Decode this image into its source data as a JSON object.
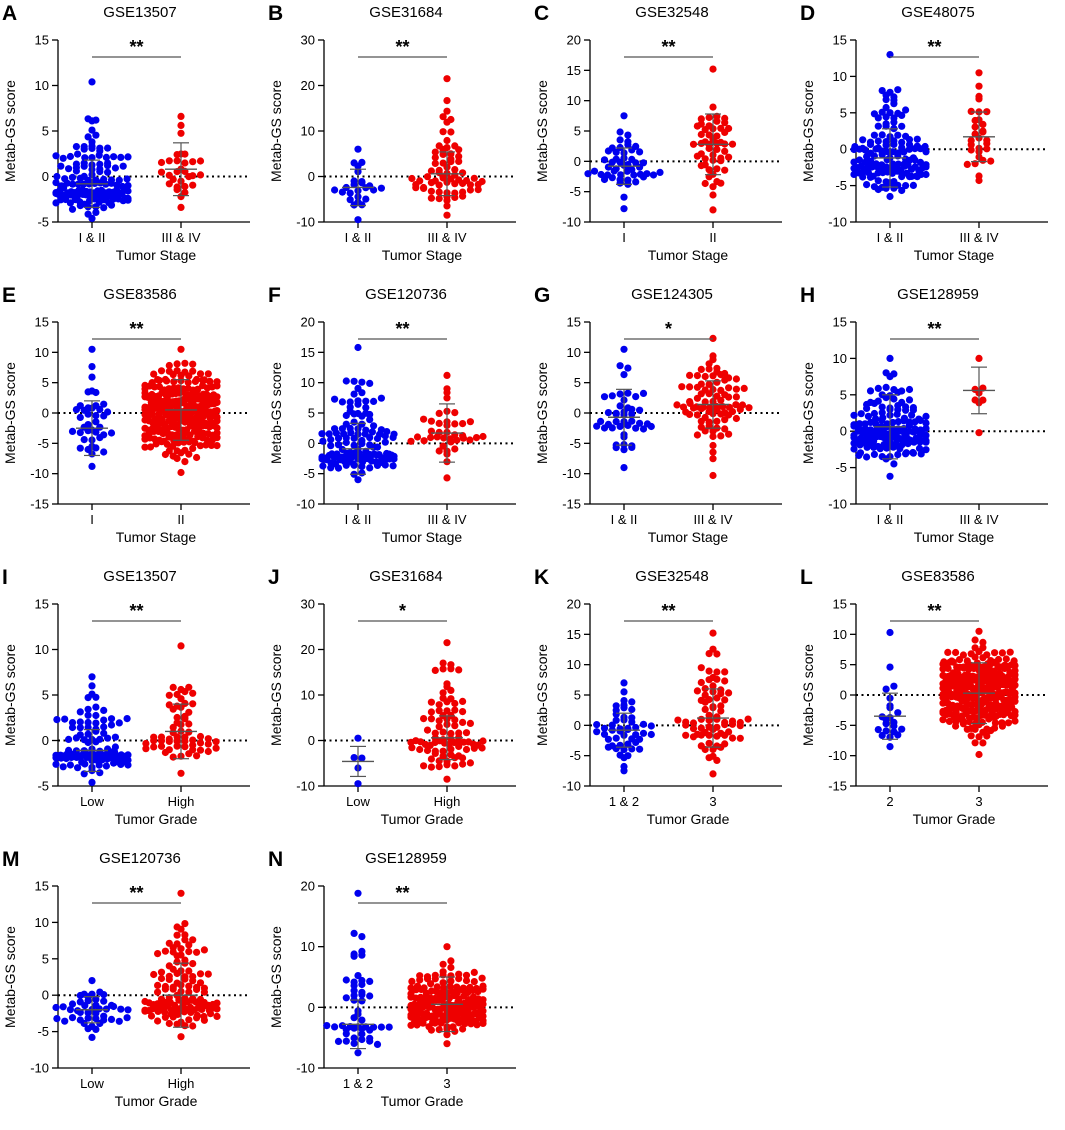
{
  "colors": {
    "group1": "#0000ee",
    "group2": "#ee0000",
    "axis": "#000000",
    "mean_line": "#555555"
  },
  "chart_data": [
    {
      "id": "A",
      "type": "scatter",
      "title": "GSE13507",
      "xlabel": "Tumor Stage",
      "ylabel": "Metab-GS score",
      "ylim": [
        -5,
        15
      ],
      "yticks": [
        "-5",
        "0",
        "5",
        "10",
        "15"
      ],
      "significance": "**",
      "groups": [
        {
          "name": "I & II",
          "color": "#0000ee",
          "n": 140,
          "min": -4.6,
          "max": 10.4,
          "center": -1.5,
          "mean": -0.8,
          "sd": 2.6
        },
        {
          "name": "III & IV",
          "color": "#ee0000",
          "n": 30,
          "min": -3.4,
          "max": 6.6,
          "center": 0.2,
          "mean": 0.8,
          "sd": 2.9
        }
      ]
    },
    {
      "id": "B",
      "type": "scatter",
      "title": "GSE31684",
      "xlabel": "Tumor Stage",
      "ylabel": "Metab-GS score",
      "ylim": [
        -10,
        30
      ],
      "yticks": [
        "-10",
        "0",
        "10",
        "20",
        "30"
      ],
      "significance": "**",
      "groups": [
        {
          "name": "I & II",
          "color": "#0000ee",
          "n": 25,
          "min": -9.5,
          "max": 6.0,
          "center": -3.0,
          "mean": -2.4,
          "sd": 4.0
        },
        {
          "name": "III & IV",
          "color": "#ee0000",
          "n": 68,
          "min": -8.5,
          "max": 21.5,
          "center": 0.0,
          "mean": 0.6,
          "sd": 4.8
        }
      ]
    },
    {
      "id": "C",
      "type": "scatter",
      "title": "GSE32548",
      "xlabel": "Tumor Stage",
      "ylabel": "Metab-GS score",
      "ylim": [
        -10,
        20
      ],
      "yticks": [
        "-10",
        "-5",
        "0",
        "5",
        "10",
        "15",
        "20"
      ],
      "significance": "**",
      "groups": [
        {
          "name": "I",
          "color": "#0000ee",
          "n": 50,
          "min": -7.8,
          "max": 7.5,
          "center": -1.0,
          "mean": -0.8,
          "sd": 3.0
        },
        {
          "name": "II",
          "color": "#ee0000",
          "n": 52,
          "min": -8.0,
          "max": 15.2,
          "center": 2.5,
          "mean": 2.8,
          "sd": 5.0
        }
      ]
    },
    {
      "id": "D",
      "type": "scatter",
      "title": "GSE48075",
      "xlabel": "Tumor Stage",
      "ylabel": "Metab-GS score",
      "ylim": [
        -10,
        15
      ],
      "yticks": [
        "-10",
        "-5",
        "0",
        "5",
        "10",
        "15"
      ],
      "significance": "**",
      "groups": [
        {
          "name": "I & II",
          "color": "#0000ee",
          "n": 140,
          "min": -6.5,
          "max": 13.0,
          "center": -2.0,
          "mean": -1.2,
          "sd": 4.0
        },
        {
          "name": "III & IV",
          "color": "#ee0000",
          "n": 30,
          "min": -4.3,
          "max": 10.5,
          "center": 1.5,
          "mean": 1.7,
          "sd": 3.4
        }
      ]
    },
    {
      "id": "E",
      "type": "scatter",
      "title": "GSE83586",
      "xlabel": "Tumor Stage",
      "ylabel": "Metab-GS score",
      "ylim": [
        -15,
        15
      ],
      "yticks": [
        "-15",
        "-10",
        "-5",
        "0",
        "5",
        "10",
        "15"
      ],
      "significance": "**",
      "groups": [
        {
          "name": "I",
          "color": "#0000ee",
          "n": 40,
          "min": -8.8,
          "max": 10.5,
          "center": -3.0,
          "mean": -2.5,
          "sd": 4.5
        },
        {
          "name": "II",
          "color": "#ee0000",
          "n": 270,
          "min": -9.8,
          "max": 10.5,
          "center": 0.5,
          "mean": 0.5,
          "sd": 5.0
        }
      ]
    },
    {
      "id": "F",
      "type": "scatter",
      "title": "GSE120736",
      "xlabel": "Tumor Stage",
      "ylabel": "Metab-GS score",
      "ylim": [
        -10,
        20
      ],
      "yticks": [
        "-10",
        "-5",
        "0",
        "5",
        "10",
        "15",
        "20"
      ],
      "significance": "**",
      "groups": [
        {
          "name": "I & II",
          "color": "#0000ee",
          "n": 130,
          "min": -6.0,
          "max": 15.8,
          "center": -1.5,
          "mean": -0.9,
          "sd": 4.2
        },
        {
          "name": "III & IV",
          "color": "#ee0000",
          "n": 40,
          "min": -5.7,
          "max": 11.2,
          "center": 1.0,
          "mean": 1.7,
          "sd": 4.8
        }
      ]
    },
    {
      "id": "G",
      "type": "scatter",
      "title": "GSE124305",
      "xlabel": "Tumor Stage",
      "ylabel": "Metab-GS score",
      "ylim": [
        -15,
        15
      ],
      "yticks": [
        "-15",
        "-10",
        "-5",
        "0",
        "5",
        "10",
        "15"
      ],
      "significance": "*",
      "groups": [
        {
          "name": "I & II",
          "color": "#0000ee",
          "n": 45,
          "min": -9.0,
          "max": 10.5,
          "center": -1.0,
          "mean": -0.7,
          "sd": 4.6
        },
        {
          "name": "III & IV",
          "color": "#ee0000",
          "n": 85,
          "min": -10.3,
          "max": 12.3,
          "center": 1.5,
          "mean": 1.4,
          "sd": 3.9
        }
      ]
    },
    {
      "id": "H",
      "type": "scatter",
      "title": "GSE128959",
      "xlabel": "Tumor Stage",
      "ylabel": "Metab-GS score",
      "ylim": [
        -10,
        15
      ],
      "yticks": [
        "-10",
        "-5",
        "0",
        "5",
        "10",
        "15"
      ],
      "significance": "**",
      "groups": [
        {
          "name": "I & II",
          "color": "#0000ee",
          "n": 150,
          "min": -6.2,
          "max": 10.0,
          "center": 0.5,
          "mean": 0.6,
          "sd": 4.4
        },
        {
          "name": "III & IV",
          "color": "#ee0000",
          "n": 8,
          "min": -0.2,
          "max": 10.0,
          "center": 5.5,
          "mean": 5.6,
          "sd": 3.2
        }
      ]
    },
    {
      "id": "I",
      "type": "scatter",
      "title": "GSE13507",
      "xlabel": "Tumor Grade",
      "ylabel": "Metab-GS score",
      "ylim": [
        -5,
        15
      ],
      "yticks": [
        "-5",
        "0",
        "5",
        "10",
        "15"
      ],
      "significance": "**",
      "groups": [
        {
          "name": "Low",
          "color": "#0000ee",
          "n": 110,
          "min": -4.6,
          "max": 7.0,
          "center": -1.5,
          "mean": -1.1,
          "sd": 2.3
        },
        {
          "name": "High",
          "color": "#ee0000",
          "n": 60,
          "min": -3.6,
          "max": 10.4,
          "center": 0.5,
          "mean": 1.0,
          "sd": 3.0
        }
      ]
    },
    {
      "id": "J",
      "type": "scatter",
      "title": "GSE31684",
      "xlabel": "Tumor Grade",
      "ylabel": "Metab-GS score",
      "ylim": [
        -10,
        30
      ],
      "yticks": [
        "-10",
        "0",
        "10",
        "20",
        "30"
      ],
      "significance": "*",
      "groups": [
        {
          "name": "Low",
          "color": "#0000ee",
          "n": 5,
          "min": -9.5,
          "max": 0.5,
          "center": -4.5,
          "mean": -4.6,
          "sd": 3.3
        },
        {
          "name": "High",
          "color": "#ee0000",
          "n": 88,
          "min": -8.5,
          "max": 21.5,
          "center": 0.0,
          "mean": 0.6,
          "sd": 4.8
        }
      ]
    },
    {
      "id": "K",
      "type": "scatter",
      "title": "GSE32548",
      "xlabel": "Tumor Grade",
      "ylabel": "Metab-GS score",
      "ylim": [
        -10,
        20
      ],
      "yticks": [
        "-10",
        "-5",
        "0",
        "5",
        "10",
        "15",
        "20"
      ],
      "significance": "**",
      "groups": [
        {
          "name": "1 & 2",
          "color": "#0000ee",
          "n": 50,
          "min": -7.5,
          "max": 7.0,
          "center": -1.0,
          "mean": -0.8,
          "sd": 2.8
        },
        {
          "name": "3",
          "color": "#ee0000",
          "n": 75,
          "min": -8.0,
          "max": 15.2,
          "center": 1.0,
          "mean": 1.2,
          "sd": 4.8
        }
      ]
    },
    {
      "id": "L",
      "type": "scatter",
      "title": "GSE83586",
      "xlabel": "Tumor Grade",
      "ylabel": "Metab-GS score",
      "ylim": [
        -15,
        15
      ],
      "yticks": [
        "-15",
        "-10",
        "-5",
        "0",
        "5",
        "10",
        "15"
      ],
      "significance": "**",
      "groups": [
        {
          "name": "2",
          "color": "#0000ee",
          "n": 22,
          "min": -8.5,
          "max": 10.3,
          "center": -4.0,
          "mean": -3.5,
          "sd": 3.8
        },
        {
          "name": "3",
          "color": "#ee0000",
          "n": 290,
          "min": -9.8,
          "max": 10.5,
          "center": 0.5,
          "mean": 0.3,
          "sd": 5.0
        }
      ]
    },
    {
      "id": "M",
      "type": "scatter",
      "title": "GSE120736",
      "xlabel": "Tumor Grade",
      "ylabel": "Metab-GS score",
      "ylim": [
        -10,
        15
      ],
      "yticks": [
        "-10",
        "-5",
        "0",
        "5",
        "10",
        "15"
      ],
      "significance": "**",
      "groups": [
        {
          "name": "Low",
          "color": "#0000ee",
          "n": 45,
          "min": -5.8,
          "max": 2.0,
          "center": -2.0,
          "mean": -2.0,
          "sd": 1.8
        },
        {
          "name": "High",
          "color": "#ee0000",
          "n": 125,
          "min": -5.7,
          "max": 14.0,
          "center": -0.5,
          "mean": 0.0,
          "sd": 4.4
        }
      ]
    },
    {
      "id": "N",
      "type": "scatter",
      "title": "GSE128959",
      "xlabel": "Tumor Grade",
      "ylabel": "Metab-GS score",
      "ylim": [
        -10,
        20
      ],
      "yticks": [
        "-10",
        "0",
        "10",
        "20"
      ],
      "significance": "**",
      "groups": [
        {
          "name": "1 & 2",
          "color": "#0000ee",
          "n": 50,
          "min": -7.5,
          "max": 18.8,
          "center": -3.0,
          "mean": -2.8,
          "sd": 4.0
        },
        {
          "name": "3",
          "color": "#ee0000",
          "n": 180,
          "min": -6.0,
          "max": 10.0,
          "center": 0.5,
          "mean": 0.5,
          "sd": 4.5
        }
      ]
    }
  ]
}
